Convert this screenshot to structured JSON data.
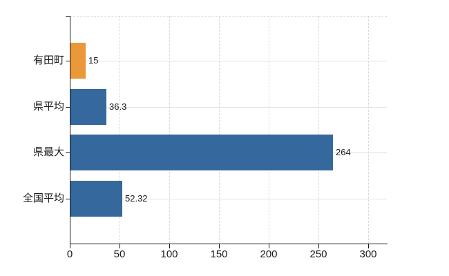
{
  "chart_data": {
    "type": "bar",
    "orientation": "horizontal",
    "categories": [
      "有田町",
      "県平均",
      "県最大",
      "全国平均"
    ],
    "values": [
      15,
      36.3,
      264,
      52.32
    ],
    "value_labels": [
      "15",
      "36.3",
      "264",
      "52.32"
    ],
    "bar_colors": [
      "#EB9838",
      "#35689D",
      "#35689D",
      "#35689D"
    ],
    "x_tick_values": [
      0,
      50,
      100,
      150,
      200,
      250,
      300
    ],
    "x_tick_labels": [
      "0",
      "50",
      "100",
      "150",
      "200",
      "250",
      "300"
    ],
    "xlim": [
      0,
      318
    ],
    "grid": true,
    "legend_position": "none",
    "title": ""
  },
  "colors": {
    "axis": "#1a1a1a",
    "vertical_grid": "#d8d8d8",
    "horizontal_grid": "#dde3dd",
    "background": "#ffffff",
    "highlight_bar": "#EB9838",
    "default_bar": "#35689D"
  }
}
